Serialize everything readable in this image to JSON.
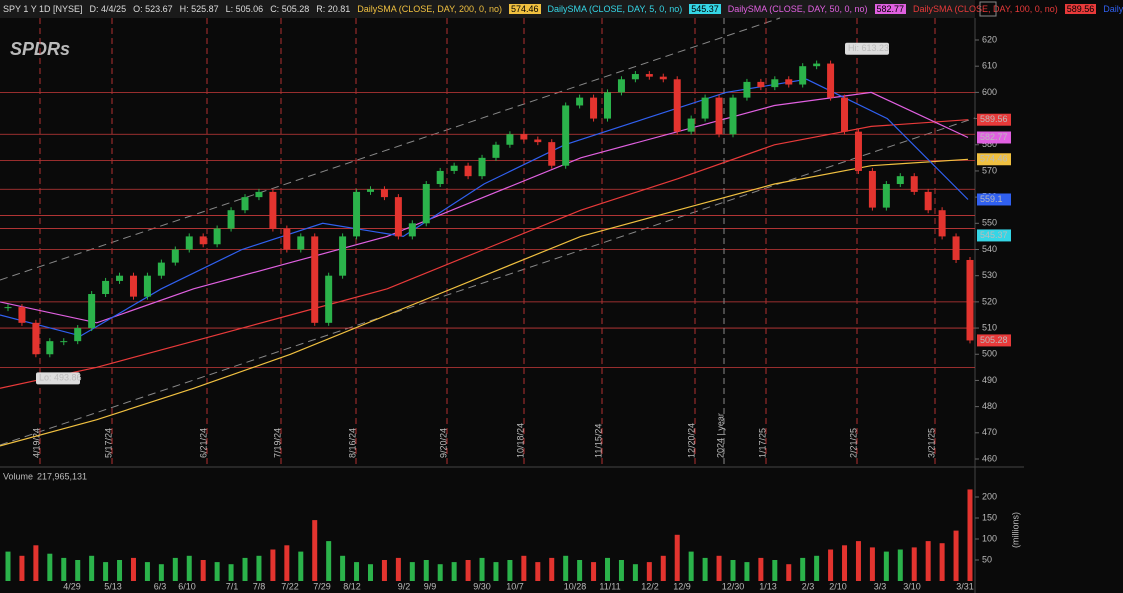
{
  "header": {
    "symbol": "SPY 1 Y 1D [NYSE]",
    "fields": [
      "D: 4/4/25",
      "O: 523.67",
      "H: 525.87",
      "L: 505.06",
      "C: 505.28",
      "R: 20.81"
    ],
    "studies": [
      {
        "name": "DailySMA (CLOSE, DAY, 200, 0, no)",
        "value": "574.46",
        "color": "#f0c040"
      },
      {
        "name": "DailySMA (CLOSE, DAY, 5, 0, no)",
        "value": "545.37",
        "color": "#35d6e6"
      },
      {
        "name": "DailySMA (CLOSE, DAY, 50, 0, no)",
        "value": "582.77",
        "color": "#e060e0"
      },
      {
        "name": "DailySMA (CLOSE, DAY, 100, 0, no)",
        "value": "589.56",
        "color": "#e83a3a"
      }
    ],
    "more": "Daily"
  },
  "logo": "SPDRs",
  "price_axis": {
    "ticks": [
      620,
      610,
      600,
      590,
      580,
      570,
      560,
      550,
      540,
      530,
      520,
      510,
      500,
      490,
      480,
      470,
      460
    ]
  },
  "badges": [
    {
      "label": "589.56",
      "value": 589.56,
      "color": "#e83a3a"
    },
    {
      "label": "582.77",
      "value": 582.77,
      "color": "#e060e0"
    },
    {
      "label": "574.46",
      "value": 574.46,
      "color": "#f0c040"
    },
    {
      "label": "559.1",
      "value": 559.1,
      "color": "#3060f0"
    },
    {
      "label": "545.37",
      "value": 545.37,
      "color": "#35d6e6"
    },
    {
      "label": "505.28",
      "value": 505.28,
      "color": "#e83a3a"
    }
  ],
  "annotations": [
    {
      "label": "Hi: 613.23",
      "value": 613.23
    },
    {
      "label": "Lo: 493.86",
      "value": 493.86
    }
  ],
  "levels": [
    600,
    584,
    574,
    563,
    553,
    548,
    540,
    520,
    510,
    495
  ],
  "closes": [
    518,
    512,
    500,
    505,
    505,
    510,
    523,
    528,
    530,
    522,
    530,
    535,
    540,
    545,
    542,
    548,
    555,
    560,
    562,
    548,
    540,
    545,
    512,
    530,
    545,
    562,
    563,
    560,
    545,
    550,
    565,
    570,
    572,
    568,
    575,
    580,
    584,
    582,
    581,
    572,
    595,
    598,
    590,
    600,
    605,
    607,
    606,
    605,
    585,
    590,
    598,
    584,
    598,
    604,
    602,
    605,
    603,
    610,
    611,
    598,
    585,
    570,
    556,
    565,
    568,
    562,
    555,
    545,
    536,
    505.28
  ],
  "sma": [
    {
      "color": "#f0c040",
      "values": [
        465,
        475,
        487,
        500,
        515,
        530,
        545,
        555,
        565,
        572,
        574.46
      ]
    },
    {
      "color": "#e83a3a",
      "values": [
        487,
        495,
        505,
        515,
        525,
        540,
        555,
        567,
        580,
        587,
        589.56
      ]
    },
    {
      "color": "#e060e0",
      "values": [
        520,
        512,
        525,
        535,
        545,
        560,
        575,
        585,
        595,
        600,
        582.77
      ]
    },
    {
      "color": "#3060f0",
      "values": [
        515,
        507,
        525,
        540,
        550,
        545,
        565,
        580,
        590,
        600,
        605,
        590,
        559.1
      ]
    }
  ],
  "events": [
    "4/19/24",
    "5/17/24",
    "6/21/24",
    "7/19/24",
    "8/16/24",
    "9/20/24",
    "10/18/24",
    "11/15/24",
    "12/20/24",
    "2024 | year",
    "1/17/25",
    "2/21/25",
    "3/21/25"
  ],
  "dates": [
    "4/29",
    "5/13",
    "6/3",
    "6/10",
    "7/1",
    "7/8",
    "7/22",
    "7/29",
    "8/12",
    "9/2",
    "9/9",
    "9/30",
    "10/7",
    "10/28",
    "11/11",
    "12/2",
    "12/9",
    "12/30",
    "1/13",
    "2/3",
    "2/10",
    "3/3",
    "3/10",
    "3/31"
  ],
  "volume": {
    "label": "Volume",
    "total": "217,965,131",
    "unit": "(millions)",
    "ticks": [
      200,
      150,
      100,
      50
    ],
    "values": [
      70,
      60,
      85,
      65,
      55,
      50,
      60,
      45,
      50,
      55,
      45,
      40,
      55,
      60,
      50,
      45,
      40,
      55,
      60,
      75,
      85,
      70,
      145,
      95,
      60,
      45,
      40,
      50,
      55,
      45,
      50,
      40,
      45,
      50,
      55,
      45,
      50,
      60,
      45,
      55,
      60,
      50,
      45,
      55,
      50,
      40,
      45,
      60,
      110,
      70,
      55,
      60,
      50,
      45,
      55,
      50,
      40,
      55,
      60,
      75,
      85,
      95,
      80,
      70,
      75,
      80,
      95,
      90,
      120,
      218
    ]
  }
}
